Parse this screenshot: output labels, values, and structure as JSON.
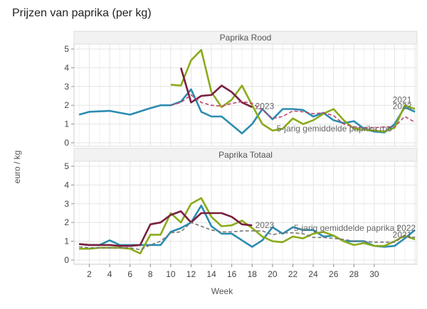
{
  "page": {
    "title": "Prijzen van paprika (per kg)"
  },
  "chart_data": {
    "type": "line",
    "title": "Prijzen van paprika (per kg)",
    "xlabel": "Week",
    "ylabel": "euro / kg",
    "grid": true,
    "xticks": [
      2,
      4,
      6,
      8,
      10,
      12,
      14,
      16,
      18,
      20,
      22,
      24,
      26,
      28,
      30
    ],
    "xlim": [
      0.5,
      34.2
    ],
    "yticks": [
      0,
      1,
      2,
      3,
      4,
      5
    ],
    "ylim": [
      -0.25,
      5.2
    ],
    "colors": {
      "2021": "#2b8cb0",
      "2022": "#8aab1a",
      "2023": "#7a1f3d",
      "avg_rood": "#c2426e",
      "avg_totaal": "#777777"
    },
    "panels": [
      {
        "strip": "Paprika Rood",
        "series": [
          {
            "name": "2021",
            "key": "2021",
            "dashed": false,
            "x": [
              1,
              2,
              4,
              6,
              8,
              9,
              10,
              11,
              12,
              13,
              14,
              15,
              16,
              17,
              18,
              19,
              20,
              21,
              22,
              23,
              24,
              25,
              26,
              27,
              28,
              29,
              30,
              31,
              32,
              33,
              34
            ],
            "y": [
              1.5,
              1.65,
              1.7,
              1.5,
              1.85,
              2.0,
              2.0,
              2.2,
              2.85,
              1.65,
              1.4,
              1.4,
              0.95,
              0.5,
              1.0,
              1.8,
              1.25,
              1.8,
              1.8,
              1.75,
              1.4,
              1.6,
              1.2,
              1.05,
              1.15,
              0.75,
              0.6,
              0.55,
              1.0,
              1.9,
              1.65
            ]
          },
          {
            "name": "2022",
            "key": "2022",
            "dashed": false,
            "x": [
              10,
              11,
              12,
              13,
              14,
              15,
              16,
              17,
              18,
              19,
              20,
              21,
              22,
              23,
              24,
              25,
              26,
              27,
              28,
              29,
              30,
              31,
              32,
              33,
              34
            ],
            "y": [
              3.1,
              3.05,
              4.4,
              4.95,
              2.7,
              1.9,
              2.3,
              3.05,
              2.0,
              1.0,
              0.65,
              0.75,
              1.3,
              1.0,
              1.2,
              1.55,
              1.8,
              1.2,
              0.75,
              0.7,
              0.65,
              0.6,
              0.8,
              2.0,
              1.8
            ]
          },
          {
            "name": "2023",
            "key": "2023",
            "dashed": false,
            "x": [
              11,
              12,
              13,
              14,
              15,
              16,
              17,
              18
            ],
            "y": [
              4.0,
              2.15,
              2.5,
              2.55,
              3.05,
              2.7,
              2.15,
              1.9
            ]
          },
          {
            "name": "5-jarig gemiddelde paprika rood",
            "key": "avg_rood",
            "dashed": true,
            "x": [
              10,
              11,
              12,
              13,
              14,
              15,
              16,
              17,
              18,
              19,
              20,
              21,
              22,
              23,
              24,
              25,
              26,
              27,
              28,
              29,
              30,
              31,
              32,
              33,
              34
            ],
            "y": [
              2.0,
              2.15,
              2.55,
              2.15,
              2.0,
              1.95,
              2.1,
              2.2,
              2.1,
              1.75,
              1.3,
              1.4,
              1.7,
              1.65,
              1.55,
              1.6,
              1.45,
              1.0,
              0.85,
              0.8,
              0.8,
              0.85,
              0.85,
              1.4,
              1.1
            ]
          }
        ],
        "annotations": [
          {
            "text": "2023",
            "x": 18.3,
            "y": 1.95
          },
          {
            "text": "2021",
            "x": 31.8,
            "y": 2.3
          },
          {
            "text": "2022",
            "x": 31.8,
            "y": 1.95
          },
          {
            "text": "5-jarig gemiddelde paprika roo",
            "x": 20.4,
            "y": 0.75
          }
        ]
      },
      {
        "strip": "Paprika Totaal",
        "series": [
          {
            "name": "2021",
            "key": "2021",
            "dashed": false,
            "x": [
              1,
              2,
              3,
              4,
              5,
              6,
              7,
              8,
              9,
              10,
              11,
              12,
              13,
              14,
              15,
              16,
              17,
              18,
              19,
              20,
              21,
              22,
              23,
              24,
              25,
              26,
              27,
              28,
              29,
              30,
              31,
              32,
              33,
              34
            ],
            "y": [
              0.85,
              0.8,
              0.8,
              1.05,
              0.8,
              0.8,
              0.8,
              0.8,
              0.8,
              1.5,
              1.7,
              2.0,
              2.9,
              1.8,
              1.4,
              1.4,
              1.05,
              0.7,
              1.05,
              1.75,
              1.4,
              1.75,
              1.6,
              1.6,
              1.25,
              1.3,
              1.0,
              1.0,
              1.0,
              0.75,
              0.7,
              0.75,
              1.15,
              1.6
            ]
          },
          {
            "name": "2022",
            "key": "2022",
            "dashed": false,
            "x": [
              1,
              2,
              3,
              4,
              5,
              6,
              7,
              8,
              9,
              10,
              11,
              12,
              13,
              14,
              15,
              16,
              17,
              18,
              19,
              20,
              21,
              22,
              23,
              24,
              25,
              26,
              27,
              28,
              29,
              30,
              31,
              32,
              33,
              34
            ],
            "y": [
              0.6,
              0.6,
              0.65,
              0.65,
              0.65,
              0.6,
              0.35,
              1.35,
              1.35,
              2.5,
              2.0,
              3.0,
              3.3,
              2.3,
              1.8,
              1.85,
              2.1,
              1.7,
              1.25,
              1.0,
              0.95,
              1.25,
              1.15,
              1.4,
              1.5,
              1.3,
              1.0,
              0.8,
              0.9,
              0.75,
              0.75,
              1.0,
              1.3,
              1.1
            ]
          },
          {
            "name": "2023",
            "key": "2023",
            "dashed": false,
            "x": [
              1,
              2,
              3,
              4,
              5,
              6,
              7,
              8,
              9,
              10,
              11,
              12,
              13,
              14,
              15,
              16,
              17,
              18
            ],
            "y": [
              0.85,
              0.8,
              0.8,
              0.8,
              0.75,
              0.75,
              0.8,
              1.9,
              2.0,
              2.4,
              2.6,
              2.0,
              2.5,
              2.5,
              2.5,
              2.3,
              1.9,
              1.85
            ]
          },
          {
            "name": "5-jarig gemiddelde paprika totaal",
            "key": "avg_totaal",
            "dashed": true,
            "x": [
              1,
              2,
              3,
              4,
              5,
              6,
              7,
              8,
              9,
              10,
              11,
              12,
              13,
              14,
              15,
              16,
              17,
              18,
              19,
              20,
              21,
              22,
              23,
              24,
              25,
              26,
              27,
              28,
              29,
              30,
              31,
              32,
              33,
              34
            ],
            "y": [
              0.7,
              0.65,
              0.65,
              0.65,
              0.65,
              0.65,
              0.55,
              0.8,
              1.0,
              1.45,
              1.5,
              2.0,
              1.8,
              1.6,
              1.5,
              1.5,
              1.55,
              1.55,
              1.55,
              1.35,
              1.45,
              1.45,
              1.4,
              1.2,
              1.2,
              1.15,
              1.1,
              1.0,
              1.0,
              0.95,
              0.95,
              0.95,
              1.3,
              1.2
            ]
          }
        ],
        "annotations": [
          {
            "text": "2023",
            "x": 18.3,
            "y": 1.85
          },
          {
            "text": "5-jarig gemiddelde paprika t",
            "x": 22.1,
            "y": 1.7
          },
          {
            "text": "2022",
            "x": 32.2,
            "y": 1.7
          },
          {
            "text": "2021",
            "x": 31.8,
            "y": 1.35
          }
        ]
      }
    ]
  }
}
